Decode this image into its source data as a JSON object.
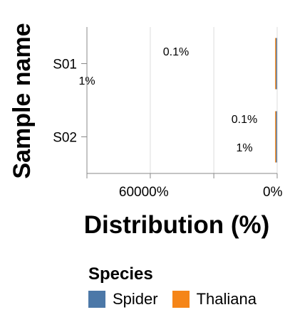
{
  "chart_data": {
    "type": "bar",
    "orientation": "horizontal",
    "stacked": true,
    "xlabel": "Distribution (%)",
    "ylabel": "Sample name",
    "x_tick_labels": [
      "60000%",
      "0%"
    ],
    "x_reversed": true,
    "categories": [
      "S01",
      "S02"
    ],
    "series": [
      {
        "name": "Spider",
        "color": "#4c78a8",
        "values": [
          1,
          1
        ]
      },
      {
        "name": "Thaliana",
        "color": "#f58518",
        "values": [
          0.1,
          0.1
        ]
      }
    ],
    "data_labels": [
      {
        "category": "S01",
        "series": "Thaliana",
        "text": "0.1%"
      },
      {
        "category": "S01",
        "series": "Spider",
        "text": "1%"
      },
      {
        "category": "S02",
        "series": "Thaliana",
        "text": "0.1%"
      },
      {
        "category": "S02",
        "series": "Spider",
        "text": "1%"
      }
    ],
    "grid": true,
    "legend": {
      "title": "Species",
      "position": "bottom"
    }
  }
}
